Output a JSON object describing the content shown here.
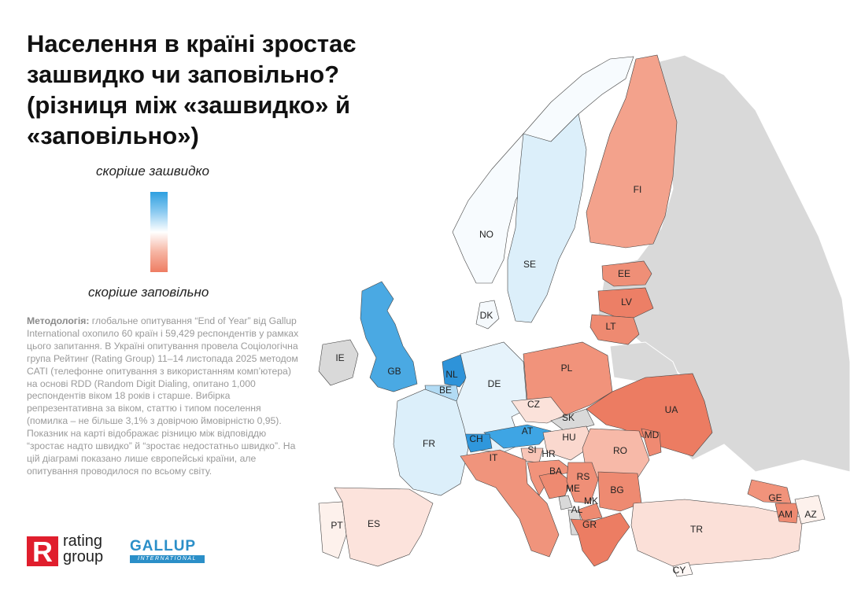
{
  "title": "Населення в країні зростає зашвидко чи заповільно? (різниця між «зашвидко» й «заповільно»)",
  "legend": {
    "top_label": "скоріше зашвидко",
    "bottom_label": "скоріше заповільно",
    "colors": {
      "fast": "#2d9fe0",
      "neutral": "#ffffff",
      "slow": "#ee7d63",
      "no_data": "#d9d9d9"
    }
  },
  "methodology": {
    "label": "Методологія:",
    "text": "глобальне опитування “End of Year” від Gallup International охопило 60 країн і 59,429 респондентів у рамках цього запитання. В Україні опитування провела Соціологічна група Рейтинг (Rating Group) 11–14 листопада 2025 методом CATI (телефонне опитування з використанням комп’ютера) на основі RDD (Random Digit Dialing, опитано 1,000 респондентів віком 18 років і старше. Вибірка репрезентативна за віком, статтю і типом поселення (помилка – не більше 3,1% з довірчою ймовірністю 0,95). Показник на карті відображає різницю між відповіддю “зростає надто швидко” й “зростає недостатньо швидко”. На цій діаграмі показано лише європейські країни, але опитування проводилося по всьому світу."
  },
  "logos": {
    "rating_letter": "R",
    "rating_line1": "rating",
    "rating_line2": "group",
    "gallup_word": "GALLUP",
    "gallup_sub": "INTERNATIONAL"
  },
  "countries": [
    {
      "code": "FI",
      "fill": "#f3a28c"
    },
    {
      "code": "NO",
      "fill": "#f7fbfe"
    },
    {
      "code": "SE",
      "fill": "#dceffa"
    },
    {
      "code": "EE",
      "fill": "#ef8f77"
    },
    {
      "code": "LV",
      "fill": "#ec7f66"
    },
    {
      "code": "LT",
      "fill": "#ee8a71"
    },
    {
      "code": "DK",
      "fill": "#f5f9fc"
    },
    {
      "code": "IE",
      "fill": "#d9d9d9"
    },
    {
      "code": "GB",
      "fill": "#4aa9e3"
    },
    {
      "code": "NL",
      "fill": "#2e93d9"
    },
    {
      "code": "BE",
      "fill": "#b2dbf4"
    },
    {
      "code": "DE",
      "fill": "#e6f3fb"
    },
    {
      "code": "PL",
      "fill": "#f1937b"
    },
    {
      "code": "CZ",
      "fill": "#fbe2da"
    },
    {
      "code": "SK",
      "fill": "#d9d9d9"
    },
    {
      "code": "UA",
      "fill": "#ec7c62"
    },
    {
      "code": "AT",
      "fill": "#3ea5e4"
    },
    {
      "code": "CH",
      "fill": "#2f97dc"
    },
    {
      "code": "FR",
      "fill": "#dceffa"
    },
    {
      "code": "HU",
      "fill": "#fad8ce"
    },
    {
      "code": "MD",
      "fill": "#ef8a72"
    },
    {
      "code": "RO",
      "fill": "#f7b9a8"
    },
    {
      "code": "SI",
      "fill": "#f8c5b7"
    },
    {
      "code": "HR",
      "fill": "#f1937b"
    },
    {
      "code": "IT",
      "fill": "#f0947c"
    },
    {
      "code": "BA",
      "fill": "#ee8a71"
    },
    {
      "code": "RS",
      "fill": "#ef8f77"
    },
    {
      "code": "ME",
      "fill": "#d9d9d9"
    },
    {
      "code": "MK",
      "fill": "#ee8a71"
    },
    {
      "code": "BG",
      "fill": "#ee8a71"
    },
    {
      "code": "AL",
      "fill": "#d9d9d9"
    },
    {
      "code": "GR",
      "fill": "#ec7d63"
    },
    {
      "code": "PT",
      "fill": "#fdf1ec"
    },
    {
      "code": "ES",
      "fill": "#fce3dc"
    },
    {
      "code": "TR",
      "fill": "#fbe0d8"
    },
    {
      "code": "GE",
      "fill": "#f1937b"
    },
    {
      "code": "AM",
      "fill": "#ee8a71"
    },
    {
      "code": "AZ",
      "fill": "#fdf1ec"
    },
    {
      "code": "CY",
      "fill": "#fef8f6"
    }
  ]
}
